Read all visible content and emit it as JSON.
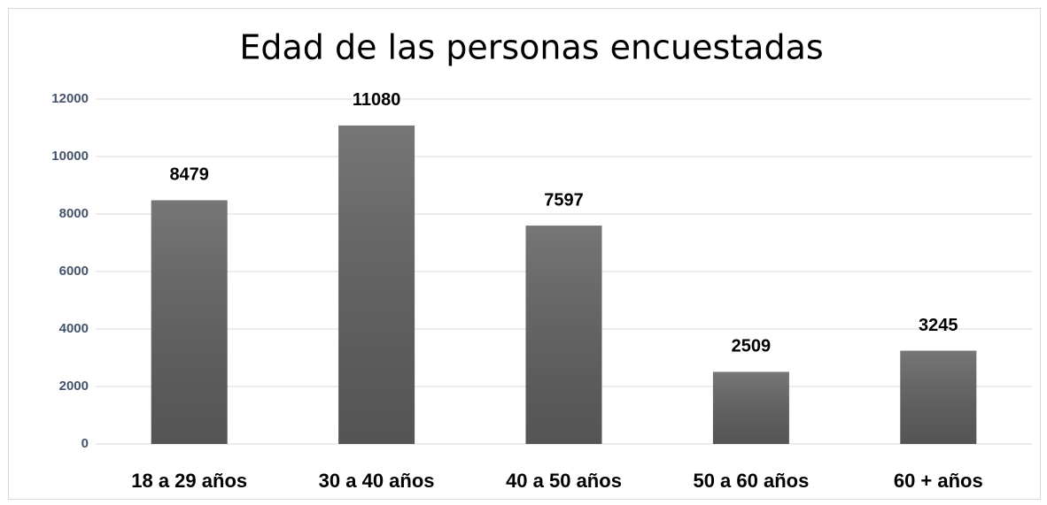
{
  "chart_data": {
    "type": "bar",
    "title": "Edad de las personas encuestadas",
    "categories": [
      "18 a 29 años",
      "30 a 40 años",
      "40 a 50 años",
      "50 a 60 años",
      "60 + años"
    ],
    "values": [
      8479,
      11080,
      7597,
      2509,
      3245
    ],
    "color": "#5e5e5e",
    "ylim": [
      0,
      12000
    ],
    "yticks": [
      0,
      2000,
      4000,
      6000,
      8000,
      10000,
      12000
    ],
    "grid": true
  }
}
